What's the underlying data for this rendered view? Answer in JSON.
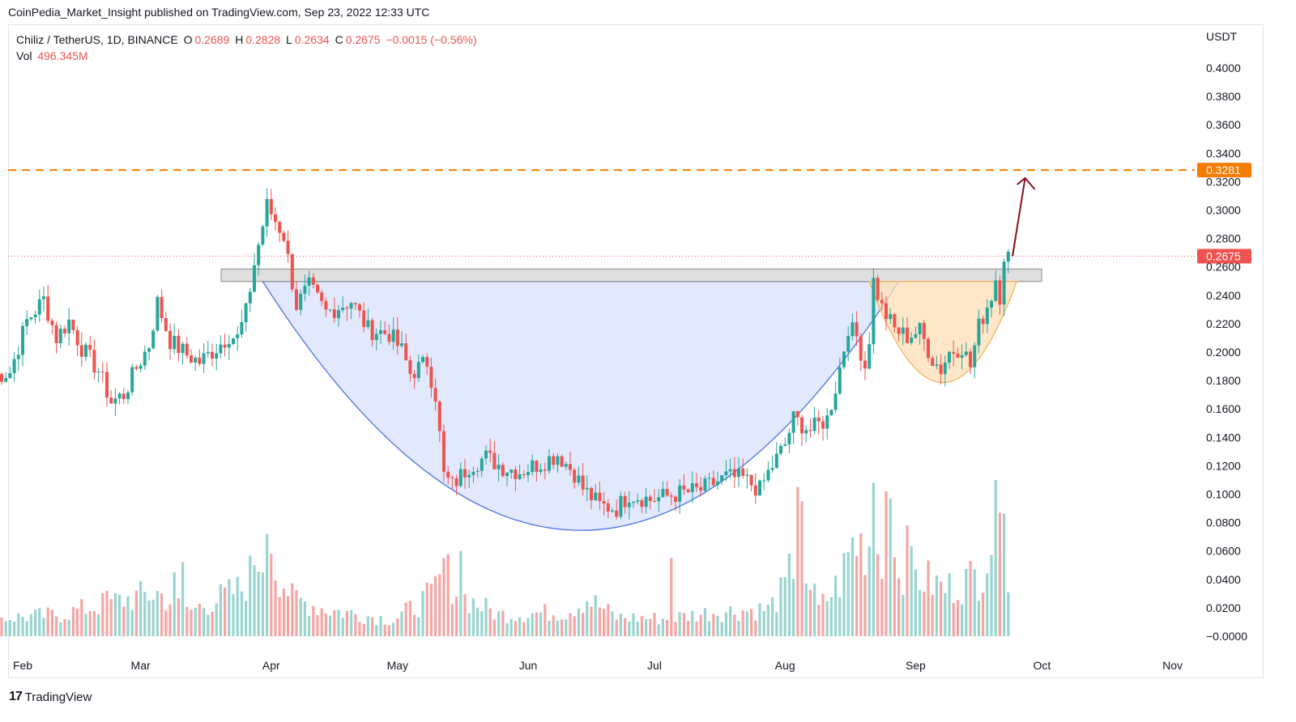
{
  "header": {
    "published": "CoinPedia_Market_Insight published on TradingView.com, Sep 23, 2022 12:33 UTC"
  },
  "legend": {
    "symbol": "Chiliz / TetherUS, 1D, BINANCE",
    "open_key": "O",
    "open": "0.2689",
    "high_key": "H",
    "high": "0.2828",
    "low_key": "L",
    "low": "0.2634",
    "close_key": "C",
    "close": "0.2675",
    "change": "−0.0015 (−0.56%)",
    "vol_key": "Vol",
    "vol": "496.345M"
  },
  "currency": "USDT",
  "footer": {
    "logo_glyph": "17",
    "brand": "TradingView"
  },
  "colors": {
    "up": "#26a69a",
    "down": "#ef5350",
    "up_vol": "#9ad4cf",
    "down_vol": "#f5a6a4",
    "resistance": "#f57c00",
    "current_price": "#ef5350",
    "cup_fill": "#d9e1fb",
    "cup_stroke": "#4a72e3",
    "handle_fill": "#fddfb7",
    "handle_stroke": "#f4b35b",
    "zone_fill": "#d9d9d9",
    "arrow": "#880e1d"
  },
  "chart_data": {
    "type": "candlestick",
    "xlabel": "",
    "ylabel": "",
    "ylim": [
      -0.0045,
      0.4185
    ],
    "y_ticks": [
      "0.4000",
      "0.3800",
      "0.3600",
      "0.3400",
      "0.3200",
      "0.3000",
      "0.2800",
      "0.2600",
      "0.2400",
      "0.2200",
      "0.2000",
      "0.1800",
      "0.1600",
      "0.1400",
      "0.1200",
      "0.1000",
      "0.0800",
      "0.0600",
      "0.0400",
      "0.0200",
      "−0.0000"
    ],
    "x_ticks": [
      {
        "label": "Feb",
        "date": "2022-02-01"
      },
      {
        "label": "Mar",
        "date": "2022-03-01"
      },
      {
        "label": "Apr",
        "date": "2022-04-01"
      },
      {
        "label": "May",
        "date": "2022-05-01"
      },
      {
        "label": "Jun",
        "date": "2022-06-01"
      },
      {
        "label": "Jul",
        "date": "2022-07-01"
      },
      {
        "label": "Aug",
        "date": "2022-08-01"
      },
      {
        "label": "Sep",
        "date": "2022-09-01"
      },
      {
        "label": "Oct",
        "date": "2022-10-01"
      },
      {
        "label": "Nov",
        "date": "2022-11-01"
      }
    ],
    "resistance_level": "0.3281",
    "current_price": "0.2675",
    "resistance_zone": [
      0.2497,
      0.2585
    ],
    "cup": {
      "start": "2022-03-30",
      "end": "2022-08-28",
      "rim": 0.2497,
      "bottom": 0.0745
    },
    "handle": {
      "start": "2022-08-21",
      "end": "2022-09-25",
      "rim": 0.2497,
      "bottom": 0.1785
    },
    "arrow": {
      "from_date": "2022-09-24",
      "from_price": 0.2675,
      "to_date": "2022-09-27",
      "to_price": 0.3225
    },
    "ohlc_anchors": [
      [
        "2022-01-25",
        0.183
      ],
      [
        "2022-01-29",
        0.186
      ],
      [
        "2022-02-02",
        0.222
      ],
      [
        "2022-02-06",
        0.237
      ],
      [
        "2022-02-09",
        0.21
      ],
      [
        "2022-02-12",
        0.222
      ],
      [
        "2022-02-15",
        0.203
      ],
      [
        "2022-02-19",
        0.187
      ],
      [
        "2022-02-22",
        0.165
      ],
      [
        "2022-02-25",
        0.17
      ],
      [
        "2022-02-28",
        0.189
      ],
      [
        "2022-03-03",
        0.205
      ],
      [
        "2022-03-05",
        0.235
      ],
      [
        "2022-03-08",
        0.208
      ],
      [
        "2022-03-12",
        0.198
      ],
      [
        "2022-03-15",
        0.193
      ],
      [
        "2022-03-19",
        0.203
      ],
      [
        "2022-03-22",
        0.212
      ],
      [
        "2022-03-24",
        0.21
      ],
      [
        "2022-03-26",
        0.228
      ],
      [
        "2022-03-28",
        0.262
      ],
      [
        "2022-03-31",
        0.303
      ],
      [
        "2022-04-04",
        0.282
      ],
      [
        "2022-04-07",
        0.233
      ],
      [
        "2022-04-10",
        0.246
      ],
      [
        "2022-04-14",
        0.228
      ],
      [
        "2022-04-20",
        0.236
      ],
      [
        "2022-04-24",
        0.216
      ],
      [
        "2022-04-29",
        0.213
      ],
      [
        "2022-05-02",
        0.201
      ],
      [
        "2022-05-04",
        0.185
      ],
      [
        "2022-05-08",
        0.193
      ],
      [
        "2022-05-10",
        0.17
      ],
      [
        "2022-05-12",
        0.113
      ],
      [
        "2022-05-14",
        0.106
      ],
      [
        "2022-05-18",
        0.12
      ],
      [
        "2022-05-22",
        0.126
      ],
      [
        "2022-05-26",
        0.119
      ],
      [
        "2022-05-30",
        0.116
      ],
      [
        "2022-06-04",
        0.122
      ],
      [
        "2022-06-08",
        0.128
      ],
      [
        "2022-06-12",
        0.115
      ],
      [
        "2022-06-14",
        0.104
      ],
      [
        "2022-06-18",
        0.092
      ],
      [
        "2022-06-22",
        0.09
      ],
      [
        "2022-06-25",
        0.1
      ],
      [
        "2022-06-30",
        0.096
      ],
      [
        "2022-07-06",
        0.1
      ],
      [
        "2022-07-12",
        0.103
      ],
      [
        "2022-07-18",
        0.112
      ],
      [
        "2022-07-22",
        0.111
      ],
      [
        "2022-07-26",
        0.103
      ],
      [
        "2022-07-28",
        0.115
      ],
      [
        "2022-08-01",
        0.135
      ],
      [
        "2022-08-03",
        0.153
      ],
      [
        "2022-08-07",
        0.145
      ],
      [
        "2022-08-11",
        0.153
      ],
      [
        "2022-08-13",
        0.175
      ],
      [
        "2022-08-15",
        0.203
      ],
      [
        "2022-08-16",
        0.218
      ],
      [
        "2022-08-18",
        0.211
      ],
      [
        "2022-08-20",
        0.19
      ],
      [
        "2022-08-21",
        0.21
      ],
      [
        "2022-08-22",
        0.25
      ],
      [
        "2022-08-24",
        0.231
      ],
      [
        "2022-08-27",
        0.216
      ],
      [
        "2022-08-30",
        0.211
      ],
      [
        "2022-09-02",
        0.215
      ],
      [
        "2022-09-05",
        0.195
      ],
      [
        "2022-09-07",
        0.188
      ],
      [
        "2022-09-09",
        0.2
      ],
      [
        "2022-09-12",
        0.204
      ],
      [
        "2022-09-14",
        0.19
      ],
      [
        "2022-09-16",
        0.218
      ],
      [
        "2022-09-19",
        0.24
      ],
      [
        "2022-09-20",
        0.252
      ],
      [
        "2022-09-21",
        0.24
      ],
      [
        "2022-09-22",
        0.2689
      ],
      [
        "2022-09-23",
        0.2675
      ]
    ],
    "volume_anchors": [
      [
        "2022-01-25",
        0.013
      ],
      [
        "2022-02-10",
        0.016
      ],
      [
        "2022-02-22",
        0.025
      ],
      [
        "2022-03-05",
        0.032
      ],
      [
        "2022-03-12",
        0.018
      ],
      [
        "2022-03-25",
        0.035
      ],
      [
        "2022-03-31",
        0.065
      ],
      [
        "2022-04-06",
        0.028
      ],
      [
        "2022-04-14",
        0.02
      ],
      [
        "2022-04-30",
        0.012
      ],
      [
        "2022-05-09",
        0.03
      ],
      [
        "2022-05-12",
        0.05
      ],
      [
        "2022-05-16",
        0.03
      ],
      [
        "2022-05-25",
        0.016
      ],
      [
        "2022-06-10",
        0.018
      ],
      [
        "2022-06-15",
        0.028
      ],
      [
        "2022-06-22",
        0.014
      ],
      [
        "2022-07-04",
        0.013
      ],
      [
        "2022-07-15",
        0.018
      ],
      [
        "2022-07-28",
        0.02
      ],
      [
        "2022-08-01",
        0.035
      ],
      [
        "2022-08-04",
        0.065
      ],
      [
        "2022-08-09",
        0.02
      ],
      [
        "2022-08-14",
        0.04
      ],
      [
        "2022-08-17",
        0.068
      ],
      [
        "2022-08-22",
        0.07
      ],
      [
        "2022-09-01",
        0.045
      ],
      [
        "2022-09-08",
        0.035
      ],
      [
        "2022-09-16",
        0.045
      ],
      [
        "2022-09-20",
        0.082
      ],
      [
        "2022-09-23",
        0.055
      ]
    ],
    "volume_spikes": [
      [
        "2022-02-21",
        0.032
      ],
      [
        "2022-03-09",
        0.045
      ],
      [
        "2022-03-11",
        0.052
      ],
      [
        "2022-03-28",
        0.05
      ],
      [
        "2022-03-31",
        0.072
      ],
      [
        "2022-04-01",
        0.058
      ],
      [
        "2022-05-12",
        0.055
      ],
      [
        "2022-05-16",
        0.06
      ],
      [
        "2022-07-05",
        0.055
      ],
      [
        "2022-08-04",
        0.105
      ],
      [
        "2022-08-05",
        0.095
      ],
      [
        "2022-08-22",
        0.108
      ],
      [
        "2022-08-25",
        0.102
      ],
      [
        "2022-08-26",
        0.097
      ],
      [
        "2022-08-30",
        0.078
      ],
      [
        "2022-09-20",
        0.11
      ],
      [
        "2022-09-21",
        0.087
      ]
    ]
  }
}
